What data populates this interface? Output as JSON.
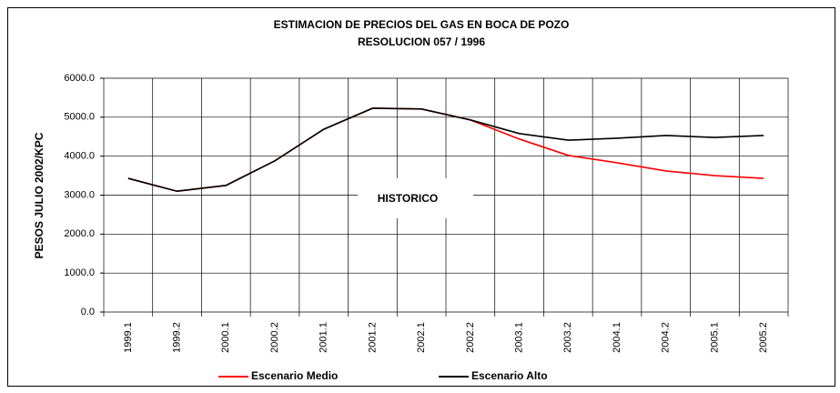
{
  "chart_data": {
    "type": "line",
    "title": "ESTIMACION DE PRECIOS DEL GAS EN BOCA DE POZO",
    "subtitle": "RESOLUCION 057 / 1996",
    "y_label": "PESOS JULIO 2002/KPC",
    "annotation": "HISTORICO",
    "categories": [
      "1999.1",
      "1999.2",
      "2000.1",
      "2000.2",
      "2001.1",
      "2001.2",
      "2002.1",
      "2002.2",
      "2003.1",
      "2003.2",
      "2004.1",
      "2004.2",
      "2005.1",
      "2005.2"
    ],
    "series": [
      {
        "name": "Escenario Medio",
        "color": "#ff0000",
        "values": [
          3430,
          3100,
          3250,
          3880,
          4690,
          5230,
          5210,
          4930,
          4440,
          4020,
          3830,
          3620,
          3500,
          3430
        ]
      },
      {
        "name": "Escenario Alto",
        "color": "#000000",
        "values": [
          3430,
          3100,
          3250,
          3880,
          4690,
          5230,
          5210,
          4930,
          4580,
          4410,
          4460,
          4530,
          4480,
          4530
        ]
      }
    ],
    "ylim": [
      0,
      6000
    ],
    "yticks": [
      {
        "value": 0,
        "label": "0.0"
      },
      {
        "value": 1000,
        "label": "1000.0"
      },
      {
        "value": 2000,
        "label": "2000.0"
      },
      {
        "value": 3000,
        "label": "3000.0"
      },
      {
        "value": 4000,
        "label": "4000.0"
      },
      {
        "value": 5000,
        "label": "5000.0"
      },
      {
        "value": 6000,
        "label": "6000.0"
      }
    ],
    "grid": true
  }
}
